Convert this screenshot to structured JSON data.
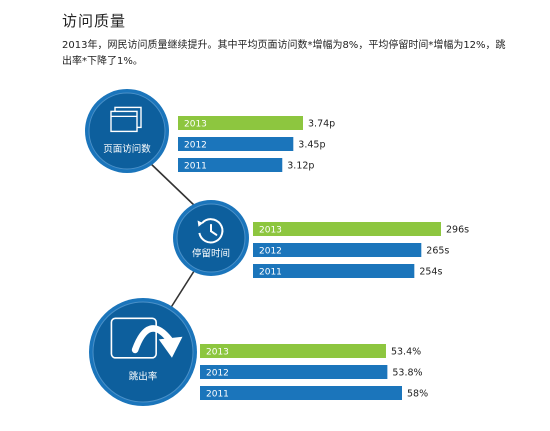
{
  "title": "访问质量",
  "description": "2013年，网民访问质量继续提升。其中平均页面访问数*增幅为8%，平均停留时间*增幅为12%，跳出率*下降了1%。",
  "colors": {
    "highlight": "#8dc63f",
    "bar": "#1b75bb",
    "circle_outer": "#1b75bb",
    "circle_inner": "#0d5f9d",
    "connector": "#333333"
  },
  "chart_data": [
    {
      "type": "bar",
      "metric": "页面访问数",
      "icon": "browser-windows-icon",
      "categories": [
        "2013",
        "2012",
        "2011"
      ],
      "values": [
        3.74,
        3.45,
        3.12
      ],
      "value_labels": [
        "3.74p",
        "3.45p",
        "3.12p"
      ]
    },
    {
      "type": "bar",
      "metric": "停留时间",
      "icon": "clock-history-icon",
      "categories": [
        "2013",
        "2012",
        "2011"
      ],
      "values": [
        296,
        265,
        254
      ],
      "value_labels": [
        "296s",
        "265s",
        "254s"
      ]
    },
    {
      "type": "bar",
      "metric": "跳出率",
      "icon": "bounce-arrow-icon",
      "categories": [
        "2013",
        "2012",
        "2011"
      ],
      "values": [
        53.4,
        53.8,
        58
      ],
      "value_labels": [
        "53.4%",
        "53.8%",
        "58%"
      ]
    }
  ]
}
